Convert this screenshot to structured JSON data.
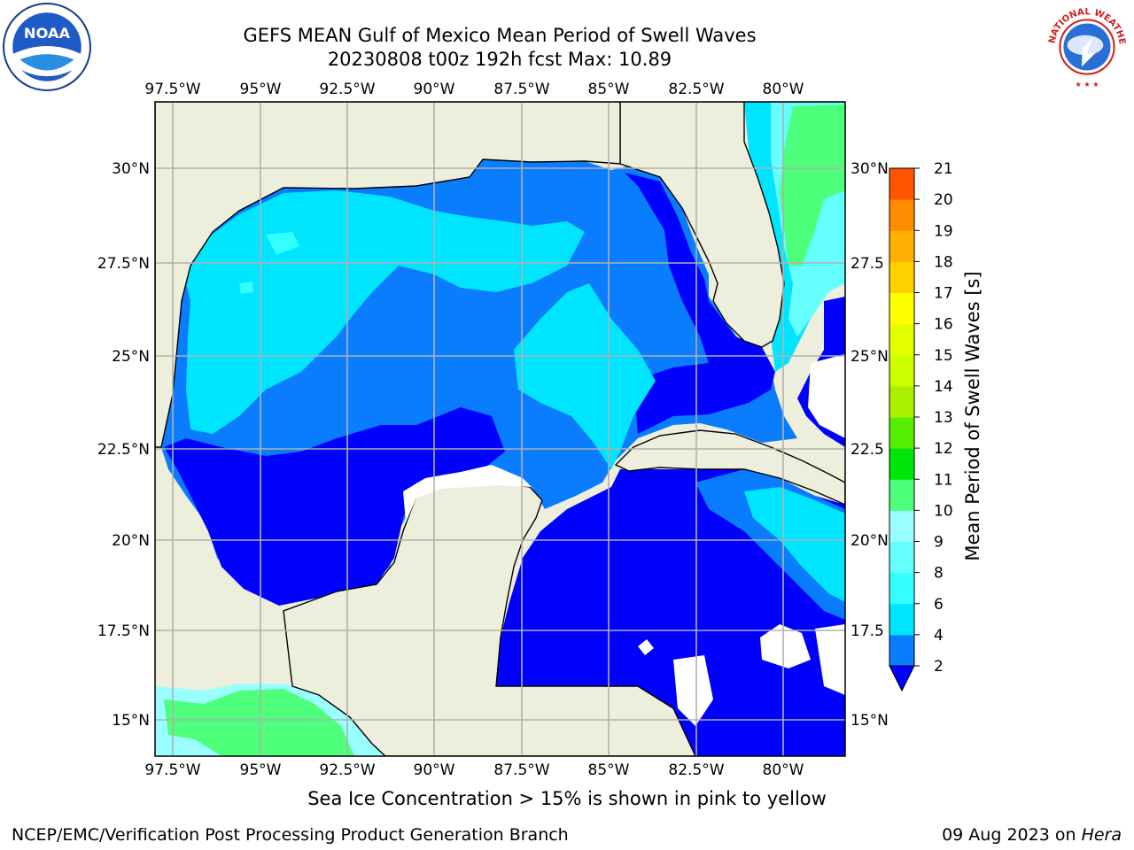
{
  "title": {
    "line1": "GEFS MEAN Gulf of Mexico Mean Period of Swell Waves",
    "line2": "20230808 t00z 192h fcst   Max: 10.89"
  },
  "map": {
    "lon_labels": [
      "97.5°W",
      "95°W",
      "92.5°W",
      "90°W",
      "87.5°W",
      "85°W",
      "82.5°W",
      "80°W"
    ],
    "lat_labels_left": [
      "30°N",
      "27.5°N",
      "25°N",
      "22.5°N",
      "20°N",
      "17.5°N",
      "15°N"
    ],
    "lat_labels_right": [
      "30°N",
      "27.5",
      "25°N",
      "22.5",
      "20°N",
      "17.5",
      "15°N"
    ],
    "land_color": "#eeeedd",
    "grid_color": "#b0b0b0"
  },
  "colorbar": {
    "label": "Mean Period of Swell Waves [s]",
    "ticks": [
      "2",
      "4",
      "6",
      "8",
      "9",
      "10",
      "11",
      "12",
      "13",
      "14",
      "15",
      "16",
      "17",
      "18",
      "19",
      "20",
      "21"
    ],
    "colors": [
      "#0a7dff",
      "#00e5ff",
      "#33ffff",
      "#66ffff",
      "#99ffff",
      "#4dff7a",
      "#00e60a",
      "#55ee00",
      "#aaf000",
      "#ccff00",
      "#e5ff00",
      "#ffff00",
      "#ffd000",
      "#ffb000",
      "#ff8c00",
      "#ff5500",
      "#ff2200",
      "#ff0000"
    ],
    "under_color": "#0000ff"
  },
  "note": "Sea Ice Concentration > 15% is shown in pink to yellow",
  "footer": {
    "credit": "NCEP/EMC/Verification Post Processing Product Generation Branch",
    "date": "09 Aug 2023 on ",
    "machine": "Hera"
  },
  "logos": {
    "noaa_text": "NOAA",
    "nws_text": "NATIONAL WEATHER SERVICE"
  }
}
